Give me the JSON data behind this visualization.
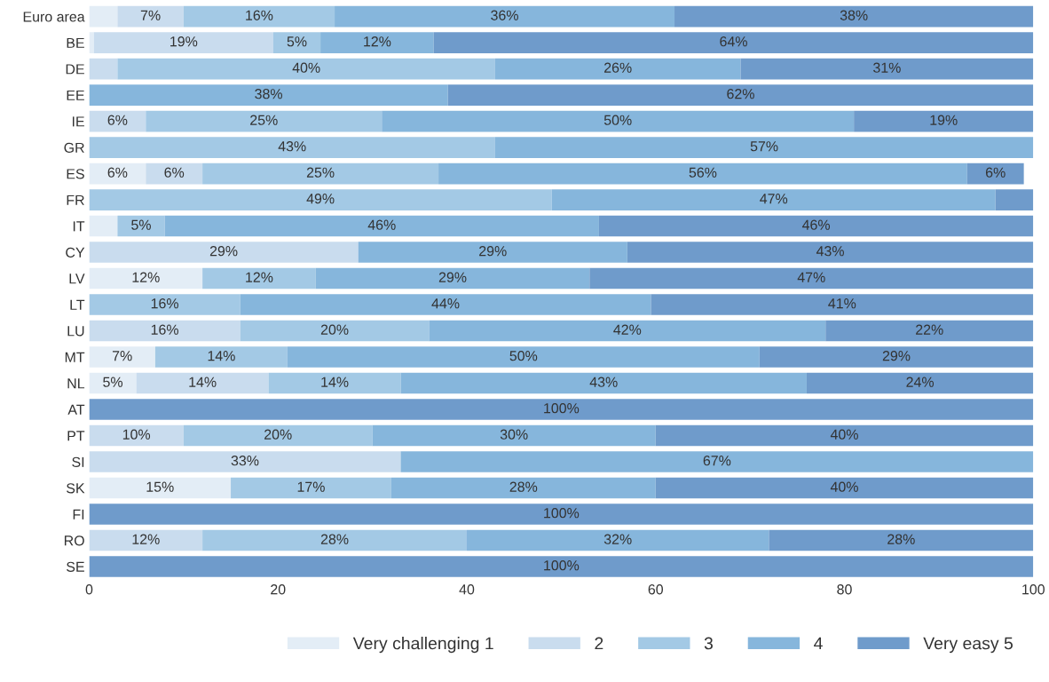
{
  "chart_data": {
    "type": "bar",
    "orientation": "horizontal",
    "stacked": true,
    "categories": [
      "Euro area",
      "BE",
      "DE",
      "EE",
      "IE",
      "GR",
      "ES",
      "FR",
      "IT",
      "CY",
      "LV",
      "LT",
      "LU",
      "MT",
      "NL",
      "AT",
      "PT",
      "SI",
      "SK",
      "FI",
      "RO",
      "SE"
    ],
    "series": [
      {
        "name": "Very challenging 1",
        "color": "#e3edf6",
        "values": [
          3,
          0.5,
          null,
          null,
          null,
          null,
          6,
          null,
          3,
          null,
          12,
          null,
          null,
          7,
          5,
          null,
          null,
          null,
          15,
          null,
          null,
          null
        ],
        "value_labels": [
          null,
          null,
          null,
          null,
          null,
          null,
          "6%",
          null,
          null,
          null,
          "12%",
          null,
          null,
          "7%",
          "5%",
          null,
          null,
          null,
          "15%",
          null,
          null,
          null
        ]
      },
      {
        "name": "2",
        "color": "#c9dcee",
        "values": [
          7,
          19,
          3,
          null,
          6,
          null,
          6,
          null,
          null,
          28.5,
          null,
          null,
          16,
          null,
          14,
          null,
          10,
          33,
          null,
          null,
          12,
          null
        ],
        "value_labels": [
          "7%",
          "19%",
          null,
          null,
          "6%",
          null,
          "6%",
          null,
          null,
          "29%",
          null,
          null,
          "16%",
          null,
          "14%",
          null,
          "10%",
          "33%",
          null,
          null,
          "12%",
          null
        ]
      },
      {
        "name": "3",
        "color": "#a3c9e5",
        "values": [
          16,
          5,
          40,
          null,
          25,
          43,
          25,
          49,
          5,
          null,
          12,
          16,
          20,
          14,
          14,
          null,
          20,
          null,
          17,
          null,
          28,
          null
        ],
        "value_labels": [
          "16%",
          "5%",
          "40%",
          null,
          "25%",
          "43%",
          "25%",
          "49%",
          "5%",
          null,
          "12%",
          "16%",
          "20%",
          "14%",
          "14%",
          null,
          "20%",
          null,
          "17%",
          null,
          "28%",
          null
        ]
      },
      {
        "name": "4",
        "color": "#86b6dc",
        "values": [
          36,
          12,
          26,
          38,
          50,
          57,
          56,
          47,
          46,
          28.5,
          29,
          43.5,
          42,
          50,
          43,
          null,
          30,
          67,
          28,
          null,
          32,
          null
        ],
        "value_labels": [
          "36%",
          "12%",
          "26%",
          "38%",
          "50%",
          "57%",
          "56%",
          "47%",
          "46%",
          "29%",
          "29%",
          "44%",
          "42%",
          "50%",
          "43%",
          null,
          "30%",
          "67%",
          "28%",
          null,
          "32%",
          null
        ]
      },
      {
        "name": "Very easy 5",
        "color": "#6f9bcb",
        "values": [
          38,
          63.5,
          31,
          62,
          19,
          null,
          6,
          4,
          46,
          43,
          47,
          40.5,
          22,
          29,
          24,
          100,
          40,
          null,
          40,
          100,
          28,
          100
        ],
        "value_labels": [
          "38%",
          "64%",
          "31%",
          "62%",
          "19%",
          null,
          "6%",
          null,
          "46%",
          "43%",
          "47%",
          "41%",
          "22%",
          "29%",
          "24%",
          "100%",
          "40%",
          null,
          "40%",
          "100%",
          "28%",
          "100%"
        ]
      }
    ],
    "xlim": [
      0,
      100
    ],
    "xticks": [
      0,
      20,
      40,
      60,
      80,
      100
    ],
    "grid": false,
    "legend": "bottom"
  }
}
